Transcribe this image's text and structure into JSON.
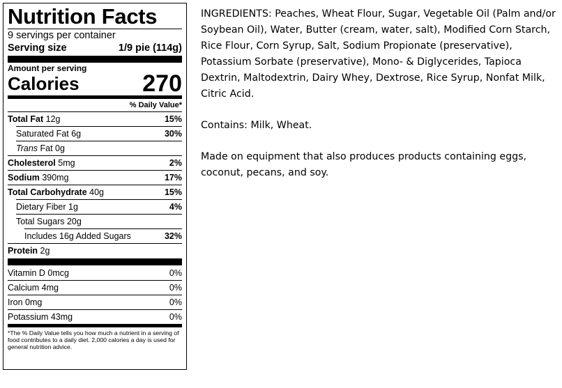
{
  "label": {
    "title": "Nutrition Facts",
    "servings_per_container": "9 servings per container",
    "serving_size_label": "Serving size",
    "serving_size_value": "1/9 pie (114g)",
    "amount_per_serving": "Amount per serving",
    "calories_label": "Calories",
    "calories_value": "270",
    "daily_value_header": "% Daily Value*",
    "nutrients": [
      {
        "name": "Total Fat",
        "amount": "12g",
        "dv": "15%"
      },
      {
        "name": "Saturated Fat",
        "amount": "6g",
        "dv": "30%"
      },
      {
        "name": "Trans",
        "amount": "Fat 0g",
        "dv": ""
      },
      {
        "name": "Cholesterol",
        "amount": "5mg",
        "dv": "2%"
      },
      {
        "name": "Sodium",
        "amount": "390mg",
        "dv": "17%"
      },
      {
        "name": "Total Carbohydrate",
        "amount": "40g",
        "dv": "15%"
      },
      {
        "name": "Dietary Fiber",
        "amount": "1g",
        "dv": "4%"
      },
      {
        "name": "Total Sugars",
        "amount": "20g",
        "dv": ""
      },
      {
        "name": "Includes 16g Added Sugars",
        "amount": "",
        "dv": "32%"
      },
      {
        "name": "Protein",
        "amount": "2g",
        "dv": ""
      }
    ],
    "vitamins": [
      {
        "name": "Vitamin D 0mcg",
        "dv": "0%"
      },
      {
        "name": "Calcium 4mg",
        "dv": "0%"
      },
      {
        "name": "Iron 0mg",
        "dv": "0%"
      },
      {
        "name": "Potassium 43mg",
        "dv": "0%"
      }
    ],
    "footnote": "*The % Daily Value tells you how much a nutrient in a serving of food contributes to a daily diet. 2,000 calories a day is used for general nutrition advice."
  },
  "ingredients_text": "INGREDIENTS: Peaches, Wheat Flour, Sugar, Vegetable Oil (Palm and/or Soybean Oil), Water, Butter (cream, water, salt), Modified Corn Starch, Rice Flour, Corn Syrup, Salt, Sodium Propionate (preservative), Potassium Sorbate (preservative), Mono- & Diglycerides, Tapioca Dextrin, Maltodextrin, Dairy Whey, Dextrose, Rice Syrup, Nonfat Milk, Citric Acid.",
  "contains_text": "Contains:  Milk, Wheat.",
  "equipment_text": "Made on equipment  that also produces  products containing eggs, coconut, pecans, and soy."
}
